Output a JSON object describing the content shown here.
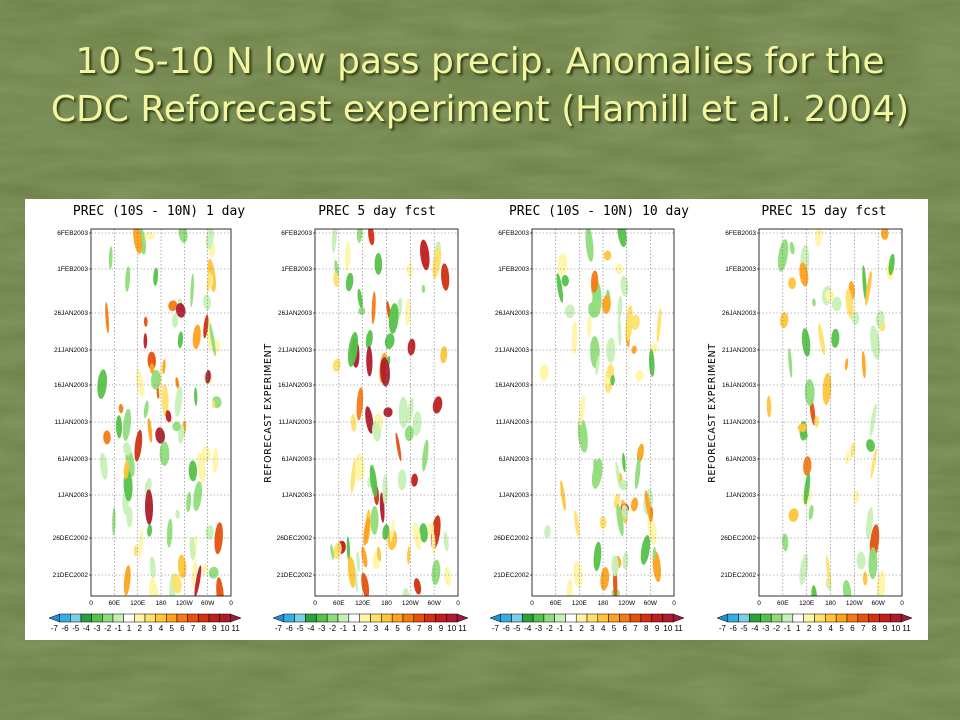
{
  "slide": {
    "title_line1": "10 S-10 N low pass precip. Anomalies for the",
    "title_line2": "CDC Reforecast experiment (Hamill et al. 2004)"
  },
  "colors": {
    "background": "#6b7f45",
    "title": "#f2f7a0",
    "panel": "#ffffff"
  },
  "chart_data": [
    {
      "type": "heatmap",
      "title": "PREC (10S - 10N) 1 day",
      "ylabel": "",
      "x_ticks": [
        "0",
        "60E",
        "120E",
        "180",
        "120W",
        "60W",
        "0"
      ],
      "y_ticks": [
        "6FEB2003",
        "1FEB2003",
        "26JAN2003",
        "21JAN2003",
        "16JAN2003",
        "11JAN2003",
        "6JAN2003",
        "1JAN2003",
        "26DEC2002",
        "21DEC2002"
      ],
      "colorbar": [
        "-7",
        "-6",
        "-5",
        "-4",
        "-3",
        "-2",
        "-1",
        "1",
        "2",
        "3",
        "4",
        "5",
        "6",
        "7",
        "8",
        "9",
        "10",
        "11"
      ]
    },
    {
      "type": "heatmap",
      "title": "PREC 5 day fcst",
      "ylabel": "REFORECAST EXPERIMENT",
      "x_ticks": [
        "0",
        "60E",
        "120E",
        "180",
        "120W",
        "60W",
        "0"
      ],
      "y_ticks": [
        "6FEB2003",
        "1FEB2003",
        "26JAN2003",
        "21JAN2003",
        "16JAN2003",
        "11JAN2003",
        "6JAN2003",
        "1JAN2003",
        "26DEC2002",
        "21DEC2002"
      ],
      "colorbar": [
        "-7",
        "-6",
        "-5",
        "-4",
        "-3",
        "-2",
        "-1",
        "1",
        "2",
        "3",
        "4",
        "5",
        "6",
        "7",
        "8",
        "9",
        "10",
        "11"
      ]
    },
    {
      "type": "heatmap",
      "title": "PREC (10S - 10N) 10 day",
      "ylabel": "",
      "x_ticks": [
        "0",
        "60E",
        "120E",
        "180",
        "120W",
        "60W",
        "0"
      ],
      "y_ticks": [
        "6FEB2003",
        "1FEB2003",
        "26JAN2003",
        "21JAN2003",
        "16JAN2003",
        "11JAN2003",
        "6JAN2003",
        "1JAN2003",
        "26DEC2002",
        "21DEC2002"
      ],
      "colorbar": [
        "-7",
        "-6",
        "-5",
        "-4",
        "-3",
        "-2",
        "-1",
        "1",
        "2",
        "3",
        "4",
        "5",
        "6",
        "7",
        "8",
        "9",
        "10",
        "11"
      ]
    },
    {
      "type": "heatmap",
      "title": "PREC 15 day fcst",
      "ylabel": "REFORECAST EXPERIMENT",
      "x_ticks": [
        "0",
        "60E",
        "120E",
        "180",
        "120W",
        "60W",
        "0"
      ],
      "y_ticks": [
        "6FEB2003",
        "1FEB2003",
        "26JAN2003",
        "21JAN2003",
        "16JAN2003",
        "11JAN2003",
        "6JAN2003",
        "1JAN2003",
        "26DEC2002",
        "21DEC2002"
      ],
      "colorbar": [
        "-7",
        "-6",
        "-5",
        "-4",
        "-3",
        "-2",
        "-1",
        "1",
        "2",
        "3",
        "4",
        "5",
        "6",
        "7",
        "8",
        "9",
        "10",
        "11"
      ]
    }
  ],
  "colorbar_colors": [
    "#1e8fd6",
    "#35aee0",
    "#7ccde6",
    "#27a33a",
    "#55c24a",
    "#8fdc7a",
    "#c7f0b8",
    "#ffffff",
    "#fff5a8",
    "#ffe06a",
    "#ffc43a",
    "#ffa21e",
    "#f57a14",
    "#e6520e",
    "#d23010",
    "#c01e1e",
    "#ad1c2e",
    "#9c1a3c"
  ]
}
